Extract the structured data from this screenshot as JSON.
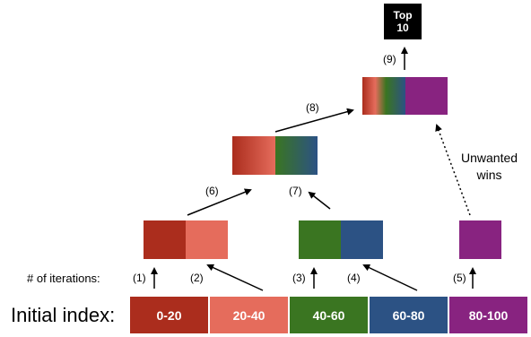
{
  "top_box": {
    "line1": "Top",
    "line2": "10"
  },
  "colors": {
    "r0_20": "#ab2d1d",
    "r20_40": "#e56c5c",
    "r40_60": "#3a7521",
    "r60_80": "#2c5284",
    "r80_100": "#882380",
    "top": "#000000"
  },
  "steps": [
    "(1)",
    "(2)",
    "(3)",
    "(4)",
    "(5)",
    "(6)",
    "(7)",
    "(8)",
    "(9)"
  ],
  "unwanted": {
    "line1": "Unwanted",
    "line2": "wins"
  },
  "iterations_label": "# of iterations:",
  "initial_index_label": "Initial index:",
  "ranges": [
    "0-20",
    "20-40",
    "40-60",
    "60-80",
    "80-100"
  ]
}
